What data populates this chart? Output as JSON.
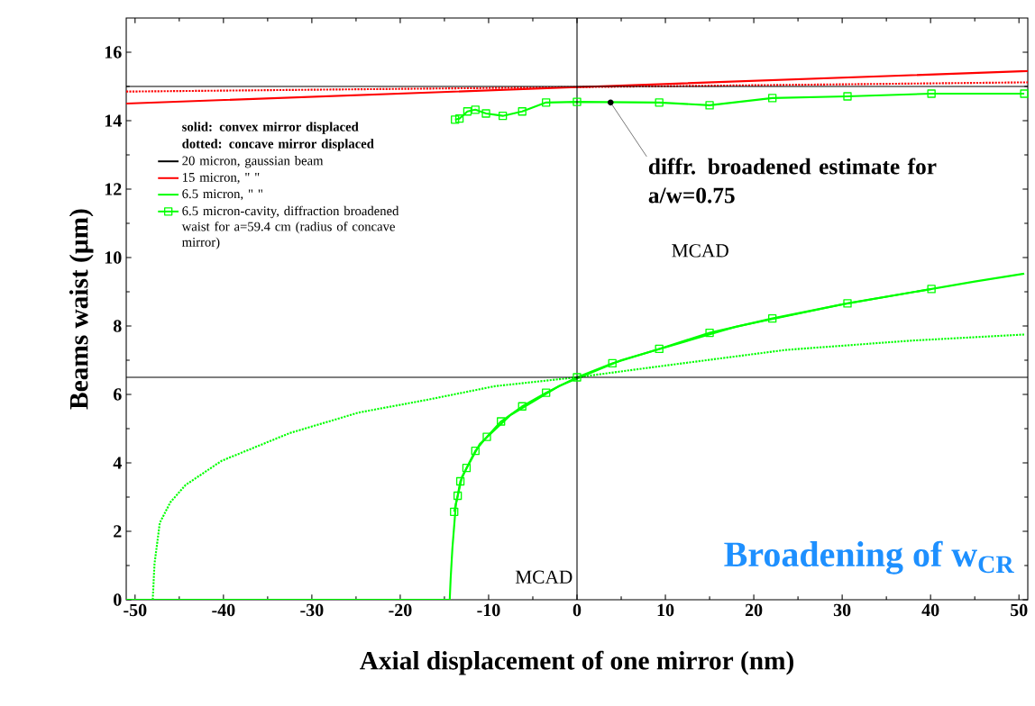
{
  "chart_data": {
    "type": "line",
    "xlabel": "Axial displacement of one mirror (nm)",
    "ylabel": "Beams waist (µm)",
    "xlim": [
      -51,
      51
    ],
    "ylim": [
      0,
      17
    ],
    "xticks": [
      -50,
      -40,
      -30,
      -20,
      -10,
      0,
      10,
      20,
      30,
      40,
      50
    ],
    "yticks": [
      0,
      2,
      4,
      6,
      8,
      10,
      12,
      14,
      16
    ],
    "grid": false,
    "legend": "left",
    "series": [
      {
        "name": "20 micron, gaussian beam",
        "color": "#000000",
        "line_style": "solid"
      },
      {
        "name": "15 micron, \"  \"",
        "color": "#ff0000",
        "line_style": "solid",
        "x": [
          -51,
          0,
          51
        ],
        "values": [
          14.5,
          14.98,
          15.45
        ]
      },
      {
        "color": "#ff0000",
        "line_style": "dotted",
        "x": [
          -51,
          0,
          51
        ],
        "values": [
          14.85,
          14.98,
          15.12
        ]
      },
      {
        "name": "6.5 micron, \"  \"",
        "color": "#00ff00",
        "line_style": "solid",
        "x": [
          -51,
          -14.4,
          -14.3,
          -14.1,
          -13.7,
          -13.0,
          -11.0,
          -7.5,
          -2,
          5,
          18,
          30,
          45,
          50.6
        ],
        "values": [
          0,
          0,
          0.6,
          1.5,
          2.8,
          3.6,
          4.55,
          5.4,
          6.25,
          7.0,
          7.98,
          8.63,
          9.3,
          9.53
        ]
      },
      {
        "color": "#00ff00",
        "line_style": "dotted",
        "x": [
          -48,
          -47.8,
          -47.2,
          -46,
          -44.3,
          -40.2,
          -32.5,
          -24.7,
          -17,
          -9.3,
          0,
          9.6,
          23.6,
          37.7,
          50.6
        ],
        "values": [
          0,
          1.05,
          2.25,
          2.85,
          3.35,
          4.06,
          4.87,
          5.47,
          5.84,
          6.24,
          6.5,
          6.83,
          7.3,
          7.57,
          7.75
        ]
      },
      {
        "name": "6.5 micron-cavity, diffraction broadened waist for a=59.4 cm (radius of concave mirror)",
        "color": "#00ff00",
        "line_style": "solid",
        "marker": "square",
        "x": [
          -13.9,
          -13.5,
          -13.2,
          -12.5,
          -11.5,
          -10.2,
          -8.6,
          -6.2,
          -3.5,
          0,
          4.0,
          9.3,
          15,
          22.1,
          30.6,
          40.1
        ],
        "values": [
          2.57,
          3.04,
          3.46,
          3.85,
          4.35,
          4.76,
          5.21,
          5.65,
          6.05,
          6.5,
          6.91,
          7.33,
          7.8,
          8.22,
          8.66,
          9.08
        ]
      },
      {
        "color": "#00ff00",
        "line_style": "solid",
        "marker": "square",
        "x": [
          -13.8,
          -13.3,
          -12.4,
          -11.5,
          -10.3,
          -8.4,
          -6.2,
          -3.5,
          0,
          9.3,
          15,
          22.1,
          30.6,
          40.1,
          50.6
        ],
        "values": [
          14.03,
          14.06,
          14.27,
          14.32,
          14.21,
          14.14,
          14.27,
          14.53,
          14.55,
          14.53,
          14.45,
          14.66,
          14.71,
          14.79,
          14.79
        ]
      }
    ],
    "ref_lines": [
      {
        "axis": "y",
        "value": 15,
        "color": "#000000"
      },
      {
        "axis": "y",
        "value": 6.5,
        "color": "#000000"
      },
      {
        "axis": "x",
        "value": 0,
        "color": "#000000"
      }
    ],
    "annotations": [
      "solid: convex mirror displaced",
      "dotted: concave mirror displaced",
      {
        "text": "diffr. broadened estimate for a/w=0.75",
        "x": 3.8,
        "y": 14.53
      },
      "MCAD",
      "MCAD",
      "Broadening of w$_{CR}$"
    ]
  }
}
